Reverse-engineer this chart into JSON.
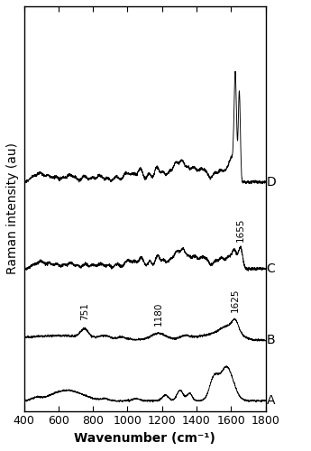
{
  "xmin": 400,
  "xmax": 1800,
  "xlabel": "Wavenumber (cm⁻¹)",
  "ylabel": "Raman intensity (au)",
  "labels": [
    "A",
    "B",
    "C",
    "D"
  ],
  "offsets": [
    0.0,
    1.6,
    3.5,
    5.8
  ],
  "line_color": "#000000",
  "background_color": "#ffffff",
  "tick_fontsize": 9,
  "label_fontsize": 10,
  "annotation_fontsize": 7.5
}
